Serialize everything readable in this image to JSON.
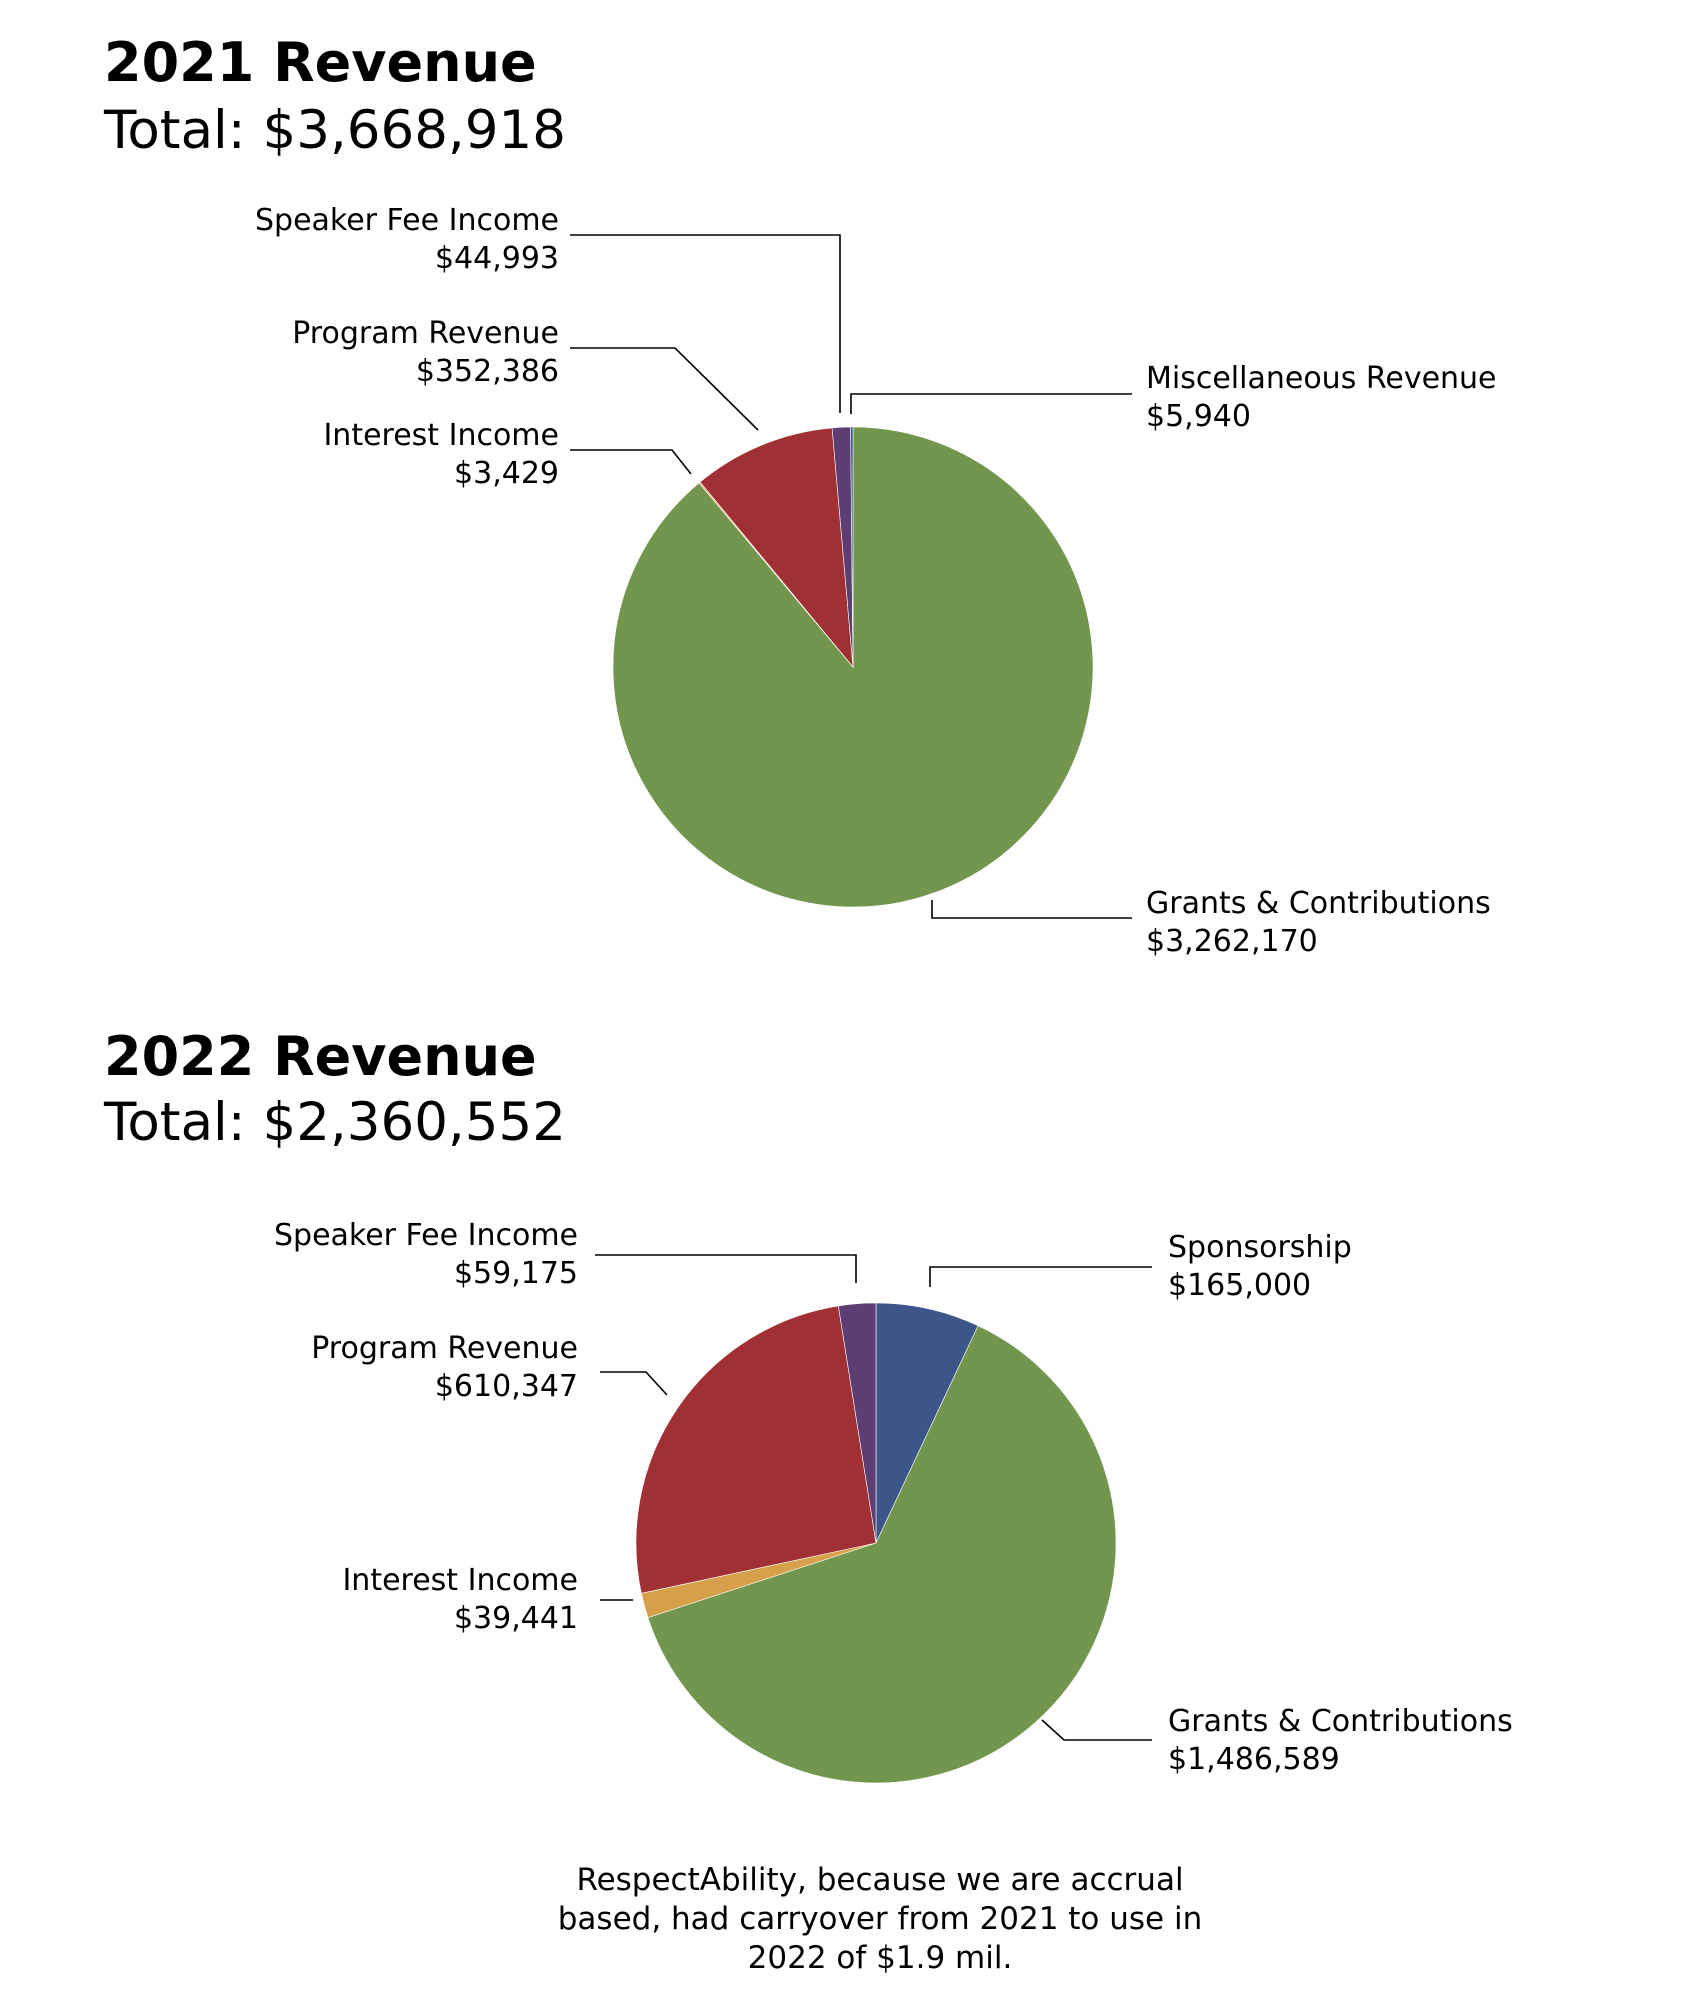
{
  "chart_data": [
    {
      "type": "pie",
      "title": "2021 Revenue",
      "subtitle": "Total: $3,668,918",
      "slices": [
        {
          "name": "Grants & Contributions",
          "value": 3262170,
          "value_label": "$3,262,170",
          "color": "#73964e"
        },
        {
          "name": "Interest Income",
          "value": 3429,
          "value_label": "$3,429",
          "color": "#d6a14a"
        },
        {
          "name": "Program Revenue",
          "value": 352386,
          "value_label": "$352,386",
          "color": "#a03033"
        },
        {
          "name": "Speaker Fee Income",
          "value": 44993,
          "value_label": "$44,993",
          "color": "#5c3e72"
        },
        {
          "name": "Miscellaneous Revenue",
          "value": 5940,
          "value_label": "$5,940",
          "color": "#3d568a"
        }
      ]
    },
    {
      "type": "pie",
      "title": "2022 Revenue",
      "subtitle": "Total: $2,360,552",
      "slices": [
        {
          "name": "Sponsorship",
          "value": 165000,
          "value_label": "$165,000",
          "color": "#3d568a"
        },
        {
          "name": "Grants & Contributions",
          "value": 1486589,
          "value_label": "$1,486,589",
          "color": "#73964e"
        },
        {
          "name": "Interest Income",
          "value": 39441,
          "value_label": "$39,441",
          "color": "#d6a14a"
        },
        {
          "name": "Program Revenue",
          "value": 610347,
          "value_label": "$610,347",
          "color": "#a03033"
        },
        {
          "name": "Speaker Fee Income",
          "value": 59175,
          "value_label": "$59,175",
          "color": "#5c3e72"
        }
      ]
    }
  ],
  "footnote": [
    "RespectAbility, because we are accrual",
    "based, had carryover from 2021 to use in",
    "2022 of $1.9 mil."
  ]
}
